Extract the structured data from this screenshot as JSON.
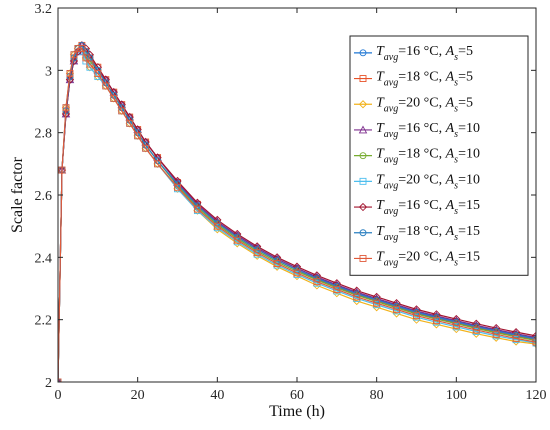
{
  "chart_data": {
    "type": "line",
    "xlabel": "Time (h)",
    "ylabel": "Scale factor",
    "xlim": [
      0,
      120
    ],
    "ylim": [
      2,
      3.2
    ],
    "xticks": [
      0,
      20,
      40,
      60,
      80,
      100,
      120
    ],
    "yticks": [
      2,
      2.2,
      2.4,
      2.6,
      2.8,
      3,
      3.2
    ],
    "ytick_labels": [
      "2",
      "2.2",
      "2.4",
      "2.6",
      "2.8",
      "3",
      "3.2"
    ],
    "legend_position": "top-right",
    "grid": false,
    "x": [
      0,
      1,
      2,
      3,
      4,
      5,
      6,
      7,
      8,
      10,
      12,
      14,
      16,
      18,
      20,
      22,
      25,
      30,
      35,
      40,
      45,
      50,
      55,
      60,
      65,
      70,
      75,
      80,
      85,
      90,
      95,
      100,
      105,
      110,
      115,
      120
    ],
    "series": [
      {
        "label_prefix": "T",
        "label_sub": "avg",
        "label_suffix": "=16 °C, A",
        "label_sub2": "s",
        "label_tail": "=5",
        "color": "#1f77d4",
        "marker": "circle",
        "values": [
          2.0,
          2.68,
          2.86,
          2.97,
          3.03,
          3.06,
          3.07,
          3.05,
          3.03,
          3.0,
          2.97,
          2.93,
          2.89,
          2.85,
          2.81,
          2.77,
          2.72,
          2.64,
          2.57,
          2.51,
          2.47,
          2.43,
          2.395,
          2.365,
          2.335,
          2.31,
          2.285,
          2.265,
          2.245,
          2.225,
          2.21,
          2.195,
          2.18,
          2.165,
          2.152,
          2.14
        ]
      },
      {
        "label_prefix": "T",
        "label_sub": "avg",
        "label_suffix": "=18 °C, A",
        "label_sub2": "s",
        "label_tail": "=5",
        "color": "#e8532a",
        "marker": "square",
        "values": [
          2.0,
          2.68,
          2.87,
          2.98,
          3.04,
          3.07,
          3.08,
          3.06,
          3.04,
          3.01,
          2.97,
          2.93,
          2.89,
          2.85,
          2.81,
          2.77,
          2.72,
          2.64,
          2.57,
          2.51,
          2.465,
          2.425,
          2.39,
          2.36,
          2.33,
          2.305,
          2.28,
          2.26,
          2.24,
          2.22,
          2.205,
          2.19,
          2.175,
          2.16,
          2.148,
          2.136
        ]
      },
      {
        "label_prefix": "T",
        "label_sub": "avg",
        "label_suffix": "=20 °C, A",
        "label_sub2": "s",
        "label_tail": "=5",
        "color": "#f2b21b",
        "marker": "diamond",
        "values": [
          2.0,
          2.68,
          2.88,
          2.99,
          3.05,
          3.07,
          3.07,
          3.04,
          3.01,
          2.98,
          2.95,
          2.91,
          2.87,
          2.83,
          2.79,
          2.75,
          2.7,
          2.62,
          2.55,
          2.49,
          2.445,
          2.405,
          2.37,
          2.34,
          2.31,
          2.285,
          2.26,
          2.24,
          2.22,
          2.2,
          2.185,
          2.17,
          2.155,
          2.142,
          2.13,
          2.122
        ]
      },
      {
        "label_prefix": "T",
        "label_sub": "avg",
        "label_suffix": "=16 °C, A",
        "label_sub2": "s",
        "label_tail": "=10",
        "color": "#7e2f8e",
        "marker": "triangle",
        "values": [
          2.0,
          2.68,
          2.86,
          2.97,
          3.03,
          3.06,
          3.08,
          3.06,
          3.04,
          3.0,
          2.97,
          2.93,
          2.89,
          2.85,
          2.81,
          2.77,
          2.72,
          2.64,
          2.57,
          2.515,
          2.47,
          2.43,
          2.395,
          2.365,
          2.337,
          2.312,
          2.288,
          2.268,
          2.248,
          2.228,
          2.212,
          2.197,
          2.182,
          2.168,
          2.155,
          2.143
        ]
      },
      {
        "label_prefix": "T",
        "label_sub": "avg",
        "label_suffix": "=18 °C, A",
        "label_sub2": "s",
        "label_tail": "=10",
        "color": "#77ac30",
        "marker": "circle",
        "values": [
          2.0,
          2.68,
          2.87,
          2.98,
          3.04,
          3.07,
          3.07,
          3.05,
          3.03,
          3.0,
          2.96,
          2.92,
          2.88,
          2.84,
          2.8,
          2.76,
          2.71,
          2.63,
          2.56,
          2.505,
          2.46,
          2.42,
          2.385,
          2.355,
          2.327,
          2.302,
          2.278,
          2.258,
          2.238,
          2.218,
          2.202,
          2.187,
          2.172,
          2.158,
          2.145,
          2.133
        ]
      },
      {
        "label_prefix": "T",
        "label_sub": "avg",
        "label_suffix": "=20 °C, A",
        "label_sub2": "s",
        "label_tail": "=10",
        "color": "#4dbeee",
        "marker": "square",
        "values": [
          2.0,
          2.68,
          2.88,
          2.99,
          3.05,
          3.07,
          3.06,
          3.03,
          3.01,
          2.98,
          2.95,
          2.91,
          2.87,
          2.83,
          2.79,
          2.75,
          2.7,
          2.62,
          2.55,
          2.495,
          2.45,
          2.41,
          2.375,
          2.345,
          2.317,
          2.292,
          2.268,
          2.248,
          2.228,
          2.208,
          2.192,
          2.177,
          2.162,
          2.148,
          2.136,
          2.125
        ]
      },
      {
        "label_prefix": "T",
        "label_sub": "avg",
        "label_suffix": "=16 °C, A",
        "label_sub2": "s",
        "label_tail": "=15",
        "color": "#a2142f",
        "marker": "diamond",
        "values": [
          2.0,
          2.68,
          2.86,
          2.97,
          3.03,
          3.06,
          3.08,
          3.07,
          3.05,
          3.01,
          2.97,
          2.93,
          2.89,
          2.85,
          2.81,
          2.77,
          2.72,
          2.645,
          2.575,
          2.52,
          2.475,
          2.435,
          2.4,
          2.37,
          2.342,
          2.317,
          2.293,
          2.273,
          2.253,
          2.233,
          2.217,
          2.202,
          2.187,
          2.173,
          2.16,
          2.148
        ]
      },
      {
        "label_prefix": "T",
        "label_sub": "avg",
        "label_suffix": "=18 °C, A",
        "label_sub2": "s",
        "label_tail": "=15",
        "color": "#2a7fc1",
        "marker": "circle",
        "values": [
          2.0,
          2.68,
          2.87,
          2.98,
          3.04,
          3.07,
          3.08,
          3.06,
          3.04,
          3.0,
          2.96,
          2.92,
          2.88,
          2.84,
          2.8,
          2.76,
          2.71,
          2.635,
          2.565,
          2.51,
          2.465,
          2.425,
          2.39,
          2.36,
          2.332,
          2.307,
          2.283,
          2.263,
          2.243,
          2.223,
          2.207,
          2.192,
          2.177,
          2.163,
          2.15,
          2.138
        ]
      },
      {
        "label_prefix": "T",
        "label_sub": "avg",
        "label_suffix": "=20 °C, A",
        "label_sub2": "s",
        "label_tail": "=15",
        "color": "#e05a3a",
        "marker": "square",
        "values": [
          2.0,
          2.68,
          2.88,
          2.99,
          3.05,
          3.07,
          3.07,
          3.04,
          3.02,
          2.99,
          2.95,
          2.91,
          2.87,
          2.83,
          2.79,
          2.75,
          2.7,
          2.625,
          2.555,
          2.5,
          2.455,
          2.415,
          2.38,
          2.35,
          2.322,
          2.297,
          2.273,
          2.253,
          2.233,
          2.213,
          2.197,
          2.182,
          2.167,
          2.153,
          2.14,
          2.128
        ]
      }
    ]
  }
}
